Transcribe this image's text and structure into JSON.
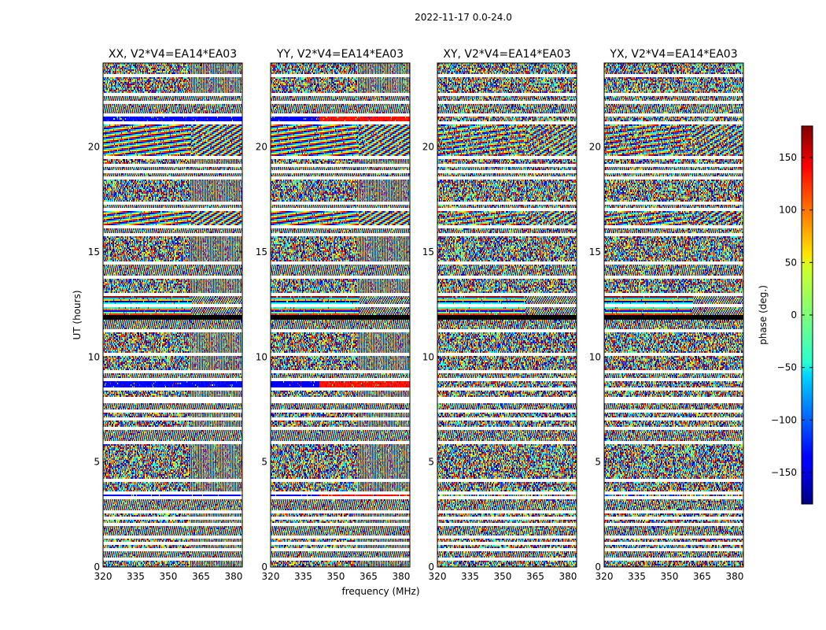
{
  "chart_data": {
    "type": "heatmap",
    "suptitle": "2022-11-17 0.0-24.0",
    "xlabel": "frequency (MHz)",
    "ylabel": "UT (hours)",
    "x_ticks": [
      "320",
      "335",
      "350",
      "365",
      "380"
    ],
    "x_tick_values": [
      320,
      335,
      350,
      365,
      380
    ],
    "xlim": [
      320,
      384
    ],
    "y_ticks": [
      "0",
      "5",
      "10",
      "15",
      "20"
    ],
    "y_tick_values": [
      0,
      5,
      10,
      15,
      20
    ],
    "ylim": [
      0,
      24
    ],
    "panels": [
      {
        "title": "XX, V2*V4=EA14*EA03",
        "polarization": "XX"
      },
      {
        "title": "YY, V2*V4=EA14*EA03",
        "polarization": "YY"
      },
      {
        "title": "XY, V2*V4=EA14*EA03",
        "polarization": "XY"
      },
      {
        "title": "YX, V2*V4=EA14*EA03",
        "polarization": "YX"
      }
    ],
    "colorbar": {
      "label": "phase (deg.)",
      "ticks": [
        "150",
        "100",
        "50",
        "0",
        "−50",
        "−100",
        "−150"
      ],
      "tick_values": [
        150,
        100,
        50,
        0,
        -50,
        -100,
        -150
      ],
      "range": [
        -180,
        180
      ],
      "colormap": "jet"
    },
    "flagged_gaps_hours": [
      0.35,
      0.85,
      1.1,
      1.4,
      2.05,
      2.35,
      2.65,
      3.3,
      3.55,
      4.1,
      5.9,
      6.6,
      7.05,
      7.45,
      7.85,
      8.05,
      8.45,
      8.95,
      9.3,
      10.15,
      11.25,
      11.95,
      12.45,
      13.0,
      13.8,
      14.5,
      15.8,
      16.2,
      17.0,
      17.3,
      18.5,
      18.85,
      19.1,
      19.5,
      21.15,
      21.5,
      22.1,
      22.5,
      23.4
    ],
    "time_blocks": [
      {
        "start": 0.0,
        "end": 0.35,
        "pattern": "noise"
      },
      {
        "start": 0.35,
        "end": 0.85,
        "pattern": "fringe"
      },
      {
        "start": 0.85,
        "end": 1.4,
        "pattern": "noise"
      },
      {
        "start": 1.4,
        "end": 2.05,
        "pattern": "fringe"
      },
      {
        "start": 2.05,
        "end": 2.65,
        "pattern": "noise"
      },
      {
        "start": 2.65,
        "end": 3.3,
        "pattern": "fringe"
      },
      {
        "start": 3.3,
        "end": 3.55,
        "pattern": "band"
      },
      {
        "start": 3.55,
        "end": 4.1,
        "pattern": "noise"
      },
      {
        "start": 4.1,
        "end": 5.9,
        "pattern": "noise"
      },
      {
        "start": 5.9,
        "end": 6.6,
        "pattern": "fringe"
      },
      {
        "start": 6.6,
        "end": 7.45,
        "pattern": "noise"
      },
      {
        "start": 7.45,
        "end": 8.05,
        "pattern": "fringe"
      },
      {
        "start": 8.05,
        "end": 8.45,
        "pattern": "noise"
      },
      {
        "start": 8.45,
        "end": 8.95,
        "pattern": "band"
      },
      {
        "start": 8.95,
        "end": 9.3,
        "pattern": "fringe"
      },
      {
        "start": 9.3,
        "end": 10.15,
        "pattern": "noise"
      },
      {
        "start": 10.15,
        "end": 11.25,
        "pattern": "noise"
      },
      {
        "start": 11.25,
        "end": 11.95,
        "pattern": "fringe"
      },
      {
        "start": 11.95,
        "end": 12.45,
        "pattern": "flat"
      },
      {
        "start": 12.45,
        "end": 13.0,
        "pattern": "flat"
      },
      {
        "start": 13.0,
        "end": 13.8,
        "pattern": "noise"
      },
      {
        "start": 13.8,
        "end": 14.5,
        "pattern": "fringe"
      },
      {
        "start": 14.5,
        "end": 15.8,
        "pattern": "noise"
      },
      {
        "start": 15.8,
        "end": 16.2,
        "pattern": "fringe"
      },
      {
        "start": 16.2,
        "end": 17.0,
        "pattern": "diag"
      },
      {
        "start": 17.0,
        "end": 17.3,
        "pattern": "fringe"
      },
      {
        "start": 17.3,
        "end": 18.5,
        "pattern": "noise"
      },
      {
        "start": 18.5,
        "end": 19.1,
        "pattern": "fringe"
      },
      {
        "start": 19.1,
        "end": 19.5,
        "pattern": "noise"
      },
      {
        "start": 19.5,
        "end": 21.15,
        "pattern": "diag"
      },
      {
        "start": 21.15,
        "end": 21.5,
        "pattern": "band"
      },
      {
        "start": 21.5,
        "end": 22.5,
        "pattern": "fringe"
      },
      {
        "start": 22.5,
        "end": 23.4,
        "pattern": "noise"
      },
      {
        "start": 23.4,
        "end": 24.0,
        "pattern": "noise"
      }
    ]
  }
}
